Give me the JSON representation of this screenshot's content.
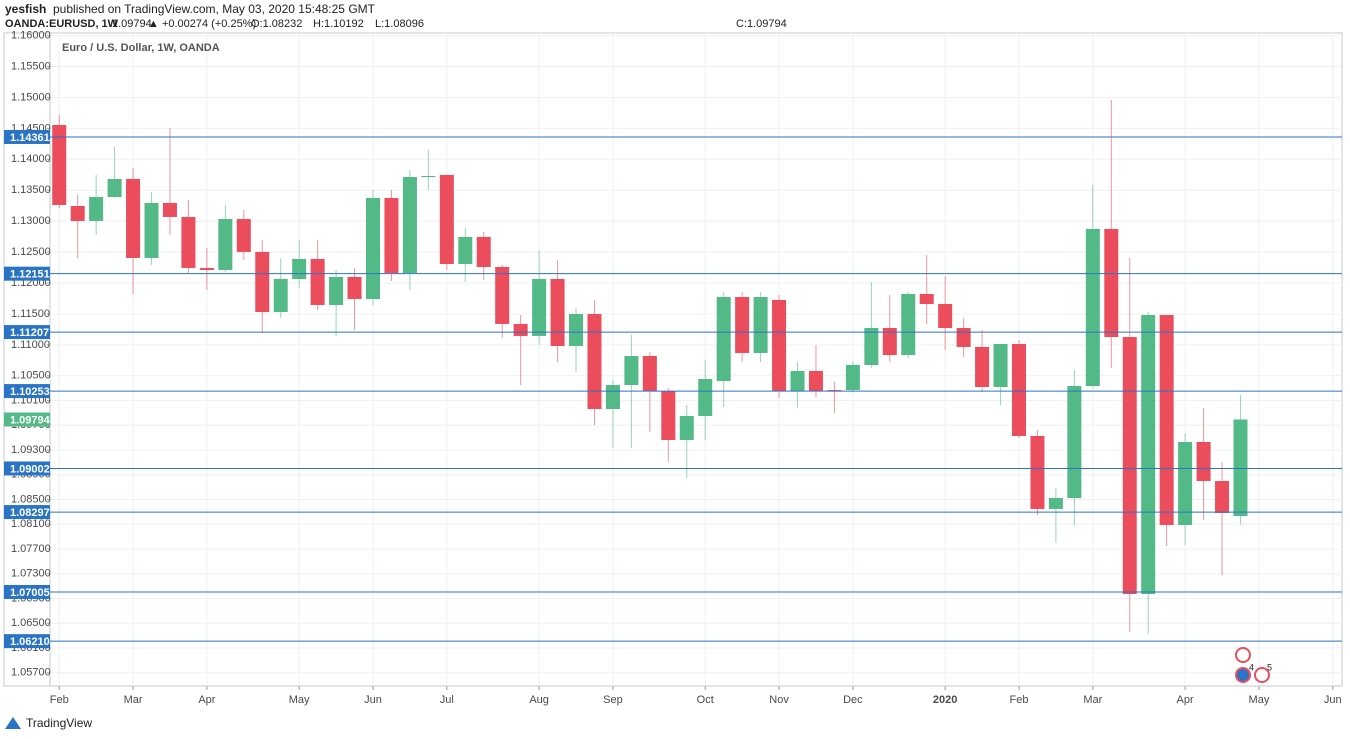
{
  "header": {
    "author": "yesfish",
    "published": "published on TradingView.com, May 03, 2020 15:48:25 GMT",
    "symbol": "OANDA:EURUSD, 1W",
    "last": "1.09794",
    "change": "▲ +0.00274 (+0.25%)",
    "ohlc": [
      "O:1.08232",
      "H:1.10192",
      "L:1.08096",
      "C:1.09794"
    ]
  },
  "chart_data": {
    "type": "candlestick",
    "title": "Euro / U.S. Dollar, 1W, OANDA",
    "categories": [
      "Feb",
      null,
      null,
      null,
      "Mar",
      null,
      null,
      null,
      "Apr",
      null,
      null,
      null,
      null,
      "May",
      null,
      null,
      null,
      "Jun",
      null,
      null,
      null,
      "Jul",
      null,
      null,
      null,
      null,
      "Aug",
      null,
      null,
      null,
      "Sep",
      null,
      null,
      null,
      null,
      "Oct",
      null,
      null,
      null,
      "Nov",
      null,
      null,
      null,
      "Dec",
      null,
      null,
      null,
      null,
      "2020",
      null,
      null,
      null,
      "Feb",
      null,
      null,
      null,
      "Mar",
      null,
      null,
      null,
      null,
      "Apr",
      null,
      null,
      null,
      "May",
      null,
      null,
      null,
      "Jun"
    ],
    "open": [
      1.14555,
      1.13245,
      1.13003,
      1.13391,
      1.13682,
      1.12405,
      1.13294,
      1.13068,
      1.12243,
      1.12211,
      1.13035,
      1.12502,
      1.11532,
      1.12065,
      1.12389,
      1.11645,
      1.12098,
      1.11742,
      1.13375,
      1.12162,
      1.13714,
      1.13747,
      1.12308,
      1.12744,
      1.12259,
      1.11338,
      1.11144,
      1.12065,
      1.10982,
      1.11499,
      1.09963,
      1.10351,
      1.1082,
      1.10254,
      1.09462,
      1.0985,
      1.10416,
      1.11774,
      1.10869,
      1.11726,
      1.10254,
      1.10578,
      1.1027,
      1.1027,
      1.10675,
      1.11273,
      1.10836,
      1.11823,
      1.11661,
      1.11273,
      1.10966,
      1.10319,
      1.11014,
      1.09527,
      1.08347,
      1.08524,
      1.10335,
      1.12874,
      1.11127,
      1.06972,
      1.11483,
      1.08088,
      1.0943,
      1.08799,
      1.08232,
      null,
      null,
      null,
      null,
      null
    ],
    "high": [
      1.14717,
      1.13423,
      1.13747,
      1.14199,
      1.1386,
      1.13472,
      1.14507,
      1.13342,
      1.12566,
      1.13262,
      1.13181,
      1.12696,
      1.12405,
      1.12696,
      1.12696,
      1.12211,
      1.12243,
      1.13504,
      1.13504,
      1.13827,
      1.14151,
      1.13747,
      1.1289,
      1.12825,
      1.12292,
      1.11483,
      1.12534,
      1.12372,
      1.11596,
      1.11726,
      1.10432,
      1.1116,
      1.10885,
      1.10303,
      1.10028,
      1.10756,
      1.11855,
      1.11855,
      1.11855,
      1.11806,
      1.10723,
      1.10998,
      1.104,
      1.10723,
      1.12017,
      1.11806,
      1.11855,
      1.12453,
      1.12114,
      1.11435,
      1.11241,
      1.10998,
      1.11079,
      1.09624,
      1.08686,
      1.10594,
      1.13585,
      1.14959,
      1.12405,
      1.11532,
      1.11483,
      1.09575,
      1.09979,
      1.09106,
      1.10192,
      null,
      null,
      null,
      null,
      null
    ],
    "low": [
      1.13213,
      1.12405,
      1.12777,
      1.13375,
      1.11823,
      1.12292,
      1.12777,
      1.12162,
      1.11887,
      1.12178,
      1.12372,
      1.11192,
      1.11435,
      1.1192,
      1.11564,
      1.11144,
      1.11241,
      1.11645,
      1.12033,
      1.11887,
      1.13504,
      1.12211,
      1.12017,
      1.12049,
      1.11111,
      1.10351,
      1.10998,
      1.10723,
      1.10562,
      1.09705,
      1.09333,
      1.09333,
      1.09591,
      1.09106,
      1.08848,
      1.09462,
      1.09996,
      1.10723,
      1.10723,
      1.10141,
      1.09979,
      1.10157,
      1.09899,
      1.10238,
      1.10626,
      1.10723,
      1.10788,
      1.11338,
      1.10917,
      1.10804,
      1.10238,
      1.10028,
      1.09494,
      1.08249,
      1.07797,
      1.08088,
      1.10303,
      1.10626,
      1.06358,
      1.06326,
      1.07748,
      1.07764,
      1.08169,
      1.07279,
      1.08096,
      null,
      null,
      null,
      null,
      null
    ],
    "close": [
      1.13262,
      1.13003,
      1.13391,
      1.13682,
      1.12405,
      1.13294,
      1.13068,
      1.12243,
      1.12211,
      1.13035,
      1.12502,
      1.11532,
      1.12065,
      1.12389,
      1.11645,
      1.12098,
      1.11742,
      1.13375,
      1.12162,
      1.13714,
      1.1373,
      1.12308,
      1.12744,
      1.12259,
      1.11338,
      1.11144,
      1.12065,
      1.10982,
      1.11499,
      1.09963,
      1.10351,
      1.1082,
      1.10254,
      1.09462,
      1.0985,
      1.10448,
      1.11774,
      1.10869,
      1.11774,
      1.10254,
      1.10578,
      1.10254,
      1.10254,
      1.10675,
      1.11273,
      1.10836,
      1.11823,
      1.11661,
      1.11273,
      1.10966,
      1.10319,
      1.11014,
      1.09527,
      1.08347,
      1.08524,
      1.10335,
      1.12874,
      1.11127,
      1.06972,
      1.11483,
      1.08088,
      1.0943,
      1.08799,
      1.08282,
      1.09794,
      null,
      null,
      null,
      null,
      null
    ],
    "up_color": "#53b987",
    "down_color": "#eb4d5c",
    "ylim": [
      1.05485,
      1.16042
    ],
    "yticks": [
      {
        "value": 1.16,
        "label": "1.16000"
      },
      {
        "value": 1.155,
        "label": "1.15500"
      },
      {
        "value": 1.15,
        "label": "1.15000"
      },
      {
        "value": 1.145,
        "label": "1.14500"
      },
      {
        "value": 1.14,
        "label": "1.14000"
      },
      {
        "value": 1.135,
        "label": "1.13500"
      },
      {
        "value": 1.13,
        "label": "1.13000"
      },
      {
        "value": 1.125,
        "label": "1.12500"
      },
      {
        "value": 1.12,
        "label": "1.12000"
      },
      {
        "value": 1.115,
        "label": "1.11500"
      },
      {
        "value": 1.11,
        "label": "1.11000"
      },
      {
        "value": 1.105,
        "label": "1.10500"
      },
      {
        "value": 1.101,
        "label": "1.10100"
      },
      {
        "value": 1.097,
        "label": "1.09700"
      },
      {
        "value": 1.093,
        "label": "1.09300"
      },
      {
        "value": 1.089,
        "label": "1.08900"
      },
      {
        "value": 1.085,
        "label": "1.08500"
      },
      {
        "value": 1.081,
        "label": "1.08100"
      },
      {
        "value": 1.077,
        "label": "1.07700"
      },
      {
        "value": 1.073,
        "label": "1.07300"
      },
      {
        "value": 1.069,
        "label": "1.06900"
      },
      {
        "value": 1.065,
        "label": "1.06500"
      },
      {
        "value": 1.061,
        "label": "1.06100"
      },
      {
        "value": 1.057,
        "label": "1.05700"
      }
    ],
    "grid": true,
    "hline_color": "#2a74c6",
    "hlines": [
      {
        "value": 1.14361,
        "label": "1.14361"
      },
      {
        "value": 1.12151,
        "label": "1.12151"
      },
      {
        "value": 1.11207,
        "label": "1.11207"
      },
      {
        "value": 1.10253,
        "label": "1.10253"
      },
      {
        "value": 1.09002,
        "label": "1.09002"
      },
      {
        "value": 1.08297,
        "label": "1.08297"
      },
      {
        "value": 1.07005,
        "label": "1.07005"
      },
      {
        "value": 1.0621,
        "label": "1.06210"
      }
    ],
    "last_price": {
      "value": 1.09794,
      "label": "1.09794"
    }
  },
  "events": [
    "4",
    "5"
  ],
  "footer": "TradingView"
}
